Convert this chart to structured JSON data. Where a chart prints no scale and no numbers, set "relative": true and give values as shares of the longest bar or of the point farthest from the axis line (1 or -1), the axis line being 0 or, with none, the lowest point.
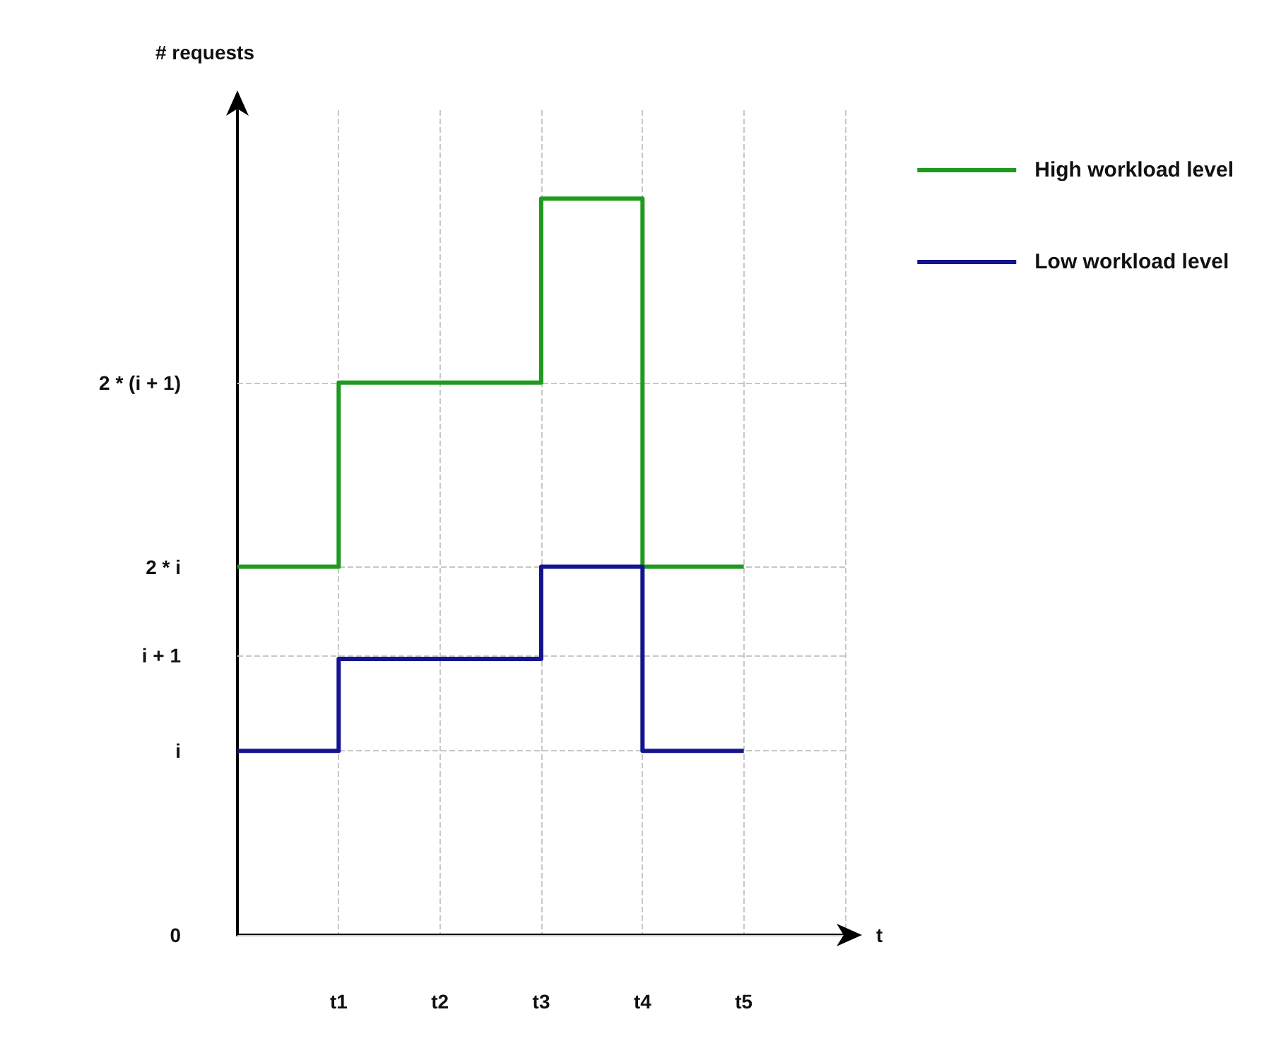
{
  "chart_data": {
    "type": "step",
    "xlabel": "t",
    "annotations": [
      "# requests"
    ],
    "relative": true,
    "categories": [
      null,
      "t1",
      "t2",
      "t3",
      "t4",
      "t5",
      null
    ],
    "series": [
      {
        "name": "High workload level",
        "color": "#1f9a1f",
        "values": [
          0.5,
          0.75,
          0.75,
          1,
          0.5,
          0.5,
          null
        ]
      },
      {
        "name": "Low workload level",
        "color": "#14148f",
        "values": [
          0.25,
          0.375,
          0.375,
          0.5,
          0.25,
          0.25,
          null
        ]
      }
    ],
    "ref_lines": [
      {
        "axis": "y",
        "value": 0,
        "label": "0",
        "line_style": "solid"
      },
      {
        "axis": "y",
        "value": 0.25,
        "label": "i",
        "line_style": "dashed"
      },
      {
        "axis": "y",
        "value": 0.375,
        "label": "i + 1",
        "line_style": "dashed"
      },
      {
        "axis": "y",
        "value": 0.5,
        "label": "2 * i",
        "line_style": "dashed"
      },
      {
        "axis": "y",
        "value": 0.75,
        "label": "2 * (i + 1)",
        "line_style": "dashed"
      }
    ],
    "grid": "x",
    "legend": "top right",
    "marker": "none",
    "line_style": "solid"
  }
}
